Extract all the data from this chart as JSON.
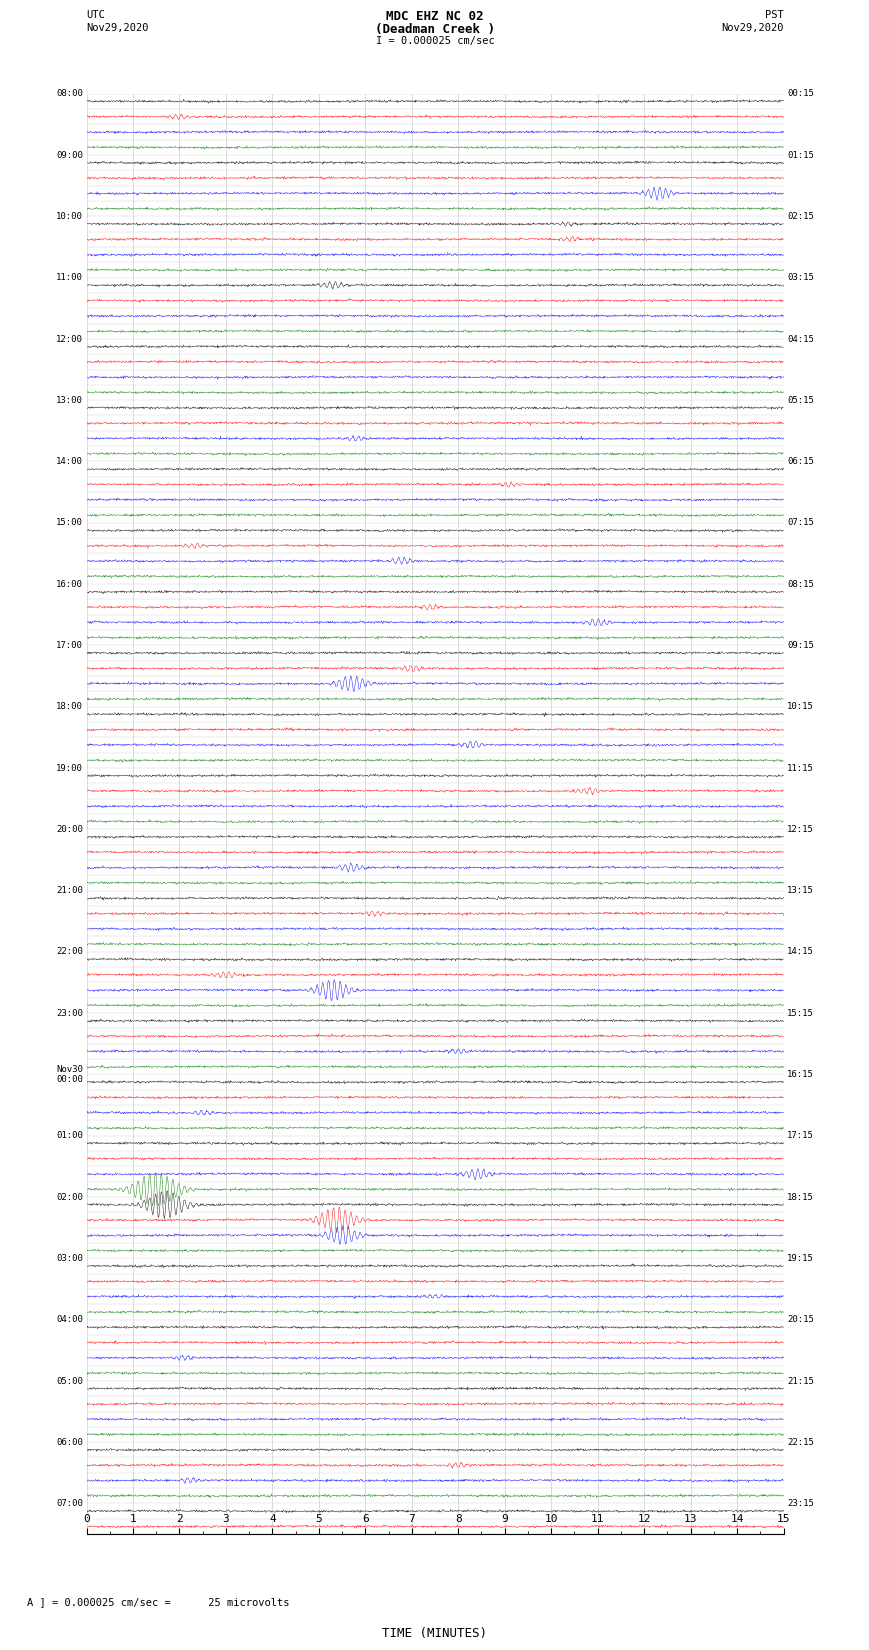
{
  "title_line1": "MDC EHZ NC 02",
  "title_line2": "(Deadman Creek )",
  "title_scale": "I = 0.000025 cm/sec",
  "xlabel": "TIME (MINUTES)",
  "scale_label": "A ] = 0.000025 cm/sec =      25 microvolts",
  "utc_labels": [
    "08:00",
    "",
    "",
    "",
    "09:00",
    "",
    "",
    "",
    "10:00",
    "",
    "",
    "",
    "11:00",
    "",
    "",
    "",
    "12:00",
    "",
    "",
    "",
    "13:00",
    "",
    "",
    "",
    "14:00",
    "",
    "",
    "",
    "15:00",
    "",
    "",
    "",
    "16:00",
    "",
    "",
    "",
    "17:00",
    "",
    "",
    "",
    "18:00",
    "",
    "",
    "",
    "19:00",
    "",
    "",
    "",
    "20:00",
    "",
    "",
    "",
    "21:00",
    "",
    "",
    "",
    "22:00",
    "",
    "",
    "",
    "23:00",
    "",
    "",
    "",
    "Nov30\n00:00",
    "",
    "",
    "",
    "01:00",
    "",
    "",
    "",
    "02:00",
    "",
    "",
    "",
    "03:00",
    "",
    "",
    "",
    "04:00",
    "",
    "",
    "",
    "05:00",
    "",
    "",
    "",
    "06:00",
    "",
    "",
    "",
    "07:00",
    ""
  ],
  "pst_labels": [
    "00:15",
    "",
    "",
    "",
    "01:15",
    "",
    "",
    "",
    "02:15",
    "",
    "",
    "",
    "03:15",
    "",
    "",
    "",
    "04:15",
    "",
    "",
    "",
    "05:15",
    "",
    "",
    "",
    "06:15",
    "",
    "",
    "",
    "07:15",
    "",
    "",
    "",
    "08:15",
    "",
    "",
    "",
    "09:15",
    "",
    "",
    "",
    "10:15",
    "",
    "",
    "",
    "11:15",
    "",
    "",
    "",
    "12:15",
    "",
    "",
    "",
    "13:15",
    "",
    "",
    "",
    "14:15",
    "",
    "",
    "",
    "15:15",
    "",
    "",
    "",
    "16:15",
    "",
    "",
    "",
    "17:15",
    "",
    "",
    "",
    "18:15",
    "",
    "",
    "",
    "19:15",
    "",
    "",
    "",
    "20:15",
    "",
    "",
    "",
    "21:15",
    "",
    "",
    "",
    "22:15",
    "",
    "",
    "",
    "23:15",
    ""
  ],
  "trace_colors": [
    "black",
    "red",
    "blue",
    "green"
  ],
  "num_traces": 94,
  "xmin": 0,
  "xmax": 15,
  "background_color": "white",
  "grid_color": "#888888",
  "noise_amplitude": 0.08,
  "event_traces": {
    "1": {
      "time": 2.0,
      "amplitude": 0.35
    },
    "6": {
      "time": 12.3,
      "amplitude": 0.9
    },
    "8": {
      "time": 10.3,
      "amplitude": 0.25
    },
    "9": {
      "time": 10.4,
      "amplitude": 0.3
    },
    "12": {
      "time": 5.3,
      "amplitude": 0.5
    },
    "22": {
      "time": 5.8,
      "amplitude": 0.4
    },
    "25": {
      "time": 9.1,
      "amplitude": 0.3
    },
    "29": {
      "time": 2.3,
      "amplitude": 0.35
    },
    "30": {
      "time": 6.8,
      "amplitude": 0.5
    },
    "33": {
      "time": 7.4,
      "amplitude": 0.35
    },
    "34": {
      "time": 11.0,
      "amplitude": 0.55
    },
    "37": {
      "time": 7.0,
      "amplitude": 0.45
    },
    "38": {
      "time": 5.7,
      "amplitude": 1.2
    },
    "42": {
      "time": 8.3,
      "amplitude": 0.5
    },
    "45": {
      "time": 10.8,
      "amplitude": 0.45
    },
    "50": {
      "time": 5.7,
      "amplitude": 0.6
    },
    "53": {
      "time": 6.2,
      "amplitude": 0.35
    },
    "57": {
      "time": 3.0,
      "amplitude": 0.5
    },
    "58": {
      "time": 5.3,
      "amplitude": 1.5
    },
    "62": {
      "time": 8.0,
      "amplitude": 0.35
    },
    "66": {
      "time": 2.5,
      "amplitude": 0.35
    },
    "70": {
      "time": 8.4,
      "amplitude": 0.8
    },
    "71": {
      "time": 1.5,
      "amplitude": 2.5
    },
    "72": {
      "time": 1.7,
      "amplitude": 2.0
    },
    "73": {
      "time": 5.4,
      "amplitude": 1.8
    },
    "74": {
      "time": 5.5,
      "amplitude": 1.3
    },
    "78": {
      "time": 7.5,
      "amplitude": 0.3
    },
    "82": {
      "time": 2.1,
      "amplitude": 0.35
    },
    "89": {
      "time": 8.0,
      "amplitude": 0.35
    },
    "90": {
      "time": 2.2,
      "amplitude": 0.35
    }
  }
}
